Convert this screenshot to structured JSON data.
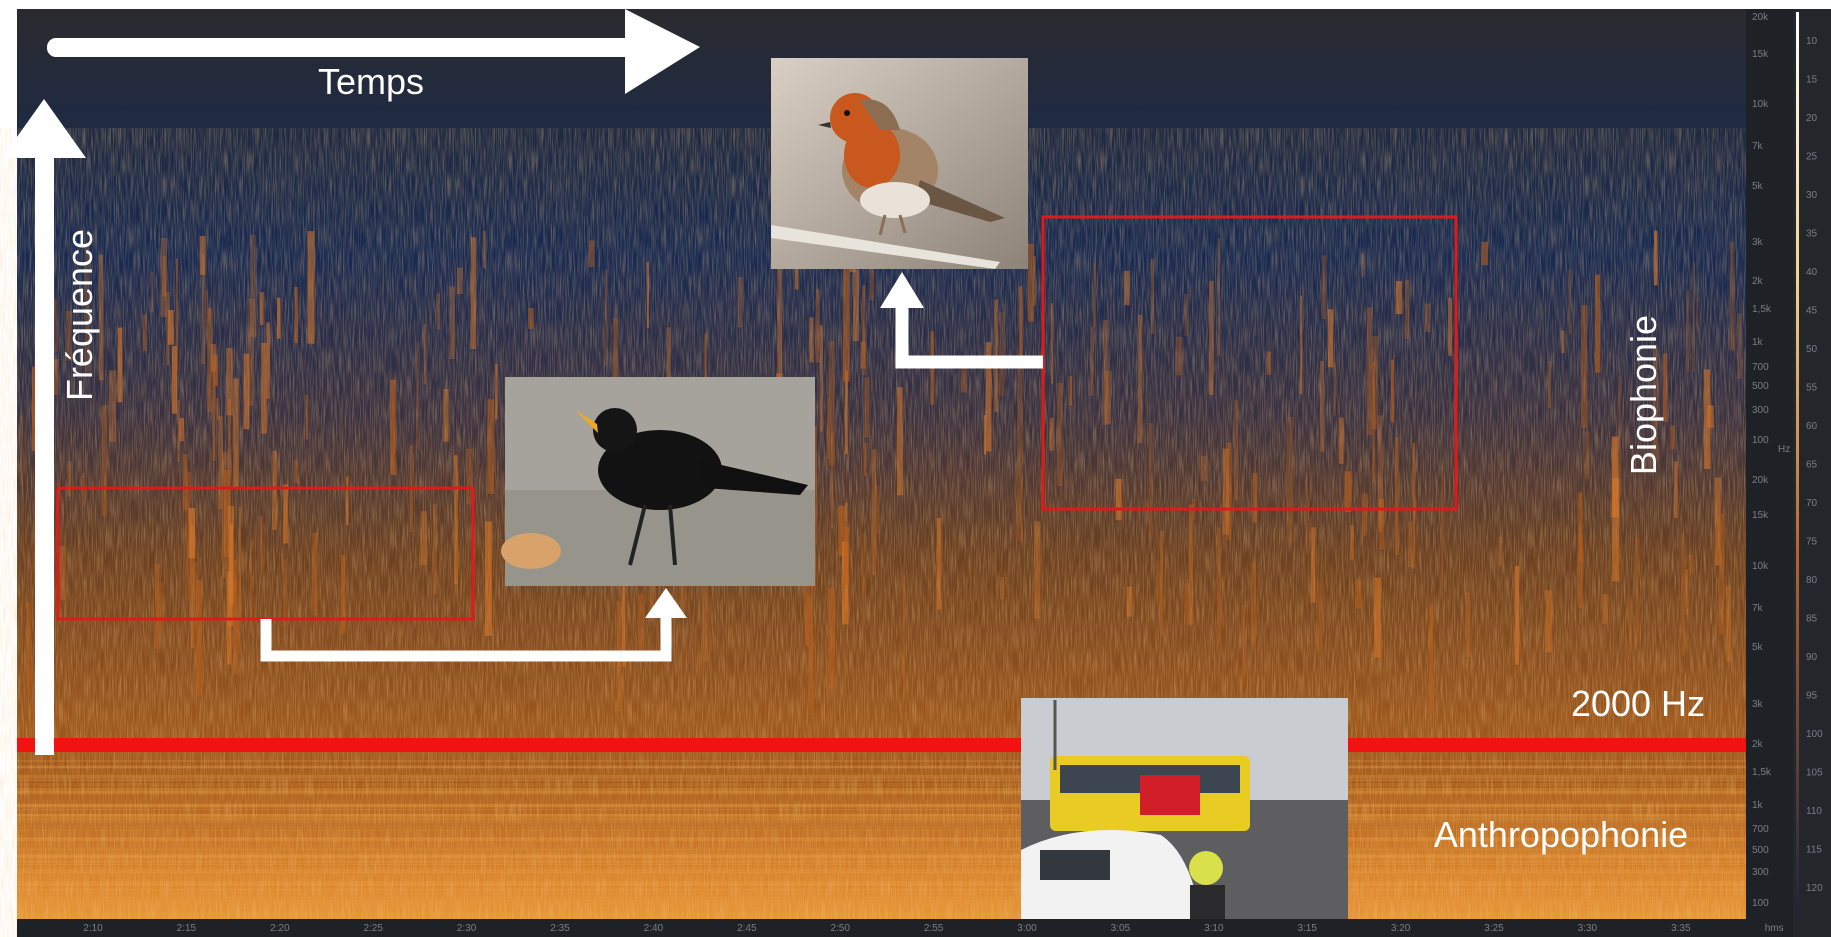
{
  "annotations": {
    "time_label": "Temps",
    "frequency_label": "Fréquence",
    "biophony_label": "Biophonie",
    "threshold_label": "2000 Hz",
    "anthropophony_label": "Anthropophonie"
  },
  "time_axis": {
    "labels": [
      "2:10",
      "2:15",
      "2:20",
      "2:25",
      "2:30",
      "2:35",
      "2:40",
      "2:45",
      "2:50",
      "2:55",
      "3:00",
      "3:05",
      "3:10",
      "3:15",
      "3:20",
      "3:25",
      "3:30",
      "3:35",
      "hms"
    ]
  },
  "frequency_axis": {
    "upper": [
      "20k",
      "15k",
      "10k",
      "7k",
      "5k",
      "3k",
      "2k",
      "1,5k",
      "1k",
      "700",
      "500",
      "300",
      "100"
    ],
    "unit": "Hz",
    "lower": [
      "20k",
      "15k",
      "10k",
      "7k",
      "5k",
      "3k",
      "2k",
      "1,5k",
      "1k",
      "700",
      "500",
      "300",
      "100"
    ]
  },
  "color_scale": {
    "labels": [
      "10",
      "15",
      "20",
      "25",
      "30",
      "35",
      "40",
      "45",
      "50",
      "55",
      "60",
      "65",
      "70",
      "75",
      "80",
      "85",
      "90",
      "95",
      "100",
      "105",
      "110",
      "115",
      "120"
    ]
  }
}
